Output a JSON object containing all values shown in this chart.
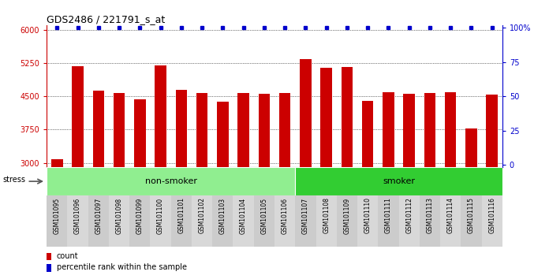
{
  "title": "GDS2486 / 221791_s_at",
  "samples": [
    "GSM101095",
    "GSM101096",
    "GSM101097",
    "GSM101098",
    "GSM101099",
    "GSM101100",
    "GSM101101",
    "GSM101102",
    "GSM101103",
    "GSM101104",
    "GSM101105",
    "GSM101106",
    "GSM101107",
    "GSM101108",
    "GSM101109",
    "GSM101110",
    "GSM101111",
    "GSM101112",
    "GSM101113",
    "GSM101114",
    "GSM101115",
    "GSM101116"
  ],
  "counts": [
    3080,
    5180,
    4620,
    4580,
    4430,
    5200,
    4650,
    4570,
    4380,
    4570,
    4560,
    4570,
    5340,
    5140,
    5150,
    4390,
    4590,
    4560,
    4580,
    4590,
    3780,
    4530
  ],
  "groups": [
    {
      "label": "non-smoker",
      "start": 0,
      "end": 11,
      "color": "#90ee90"
    },
    {
      "label": "smoker",
      "start": 12,
      "end": 21,
      "color": "#32cd32"
    }
  ],
  "bar_color": "#cc0000",
  "dot_color": "#0000cc",
  "ylim_left": [
    2900,
    6100
  ],
  "ylim_right": [
    -2,
    102
  ],
  "yticks_left": [
    3000,
    3750,
    4500,
    5250,
    6000
  ],
  "yticks_right": [
    0,
    25,
    50,
    75,
    100
  ],
  "stress_label": "stress",
  "legend_count_label": "count",
  "legend_pct_label": "percentile rank within the sample",
  "bar_width": 0.55
}
